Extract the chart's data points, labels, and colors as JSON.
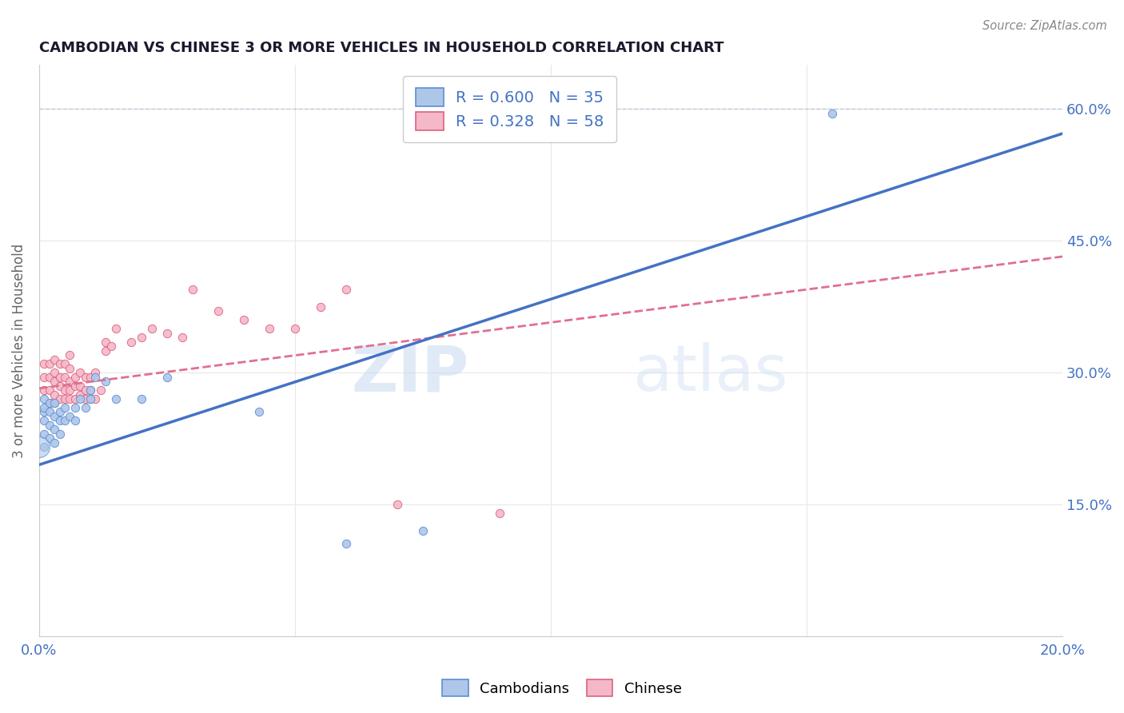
{
  "title": "CAMBODIAN VS CHINESE 3 OR MORE VEHICLES IN HOUSEHOLD CORRELATION CHART",
  "source_text": "Source: ZipAtlas.com",
  "ylabel": "3 or more Vehicles in Household",
  "xlim": [
    0.0,
    0.2
  ],
  "ylim": [
    0.0,
    0.65
  ],
  "x_ticks": [
    0.0,
    0.05,
    0.1,
    0.15,
    0.2
  ],
  "y_ticks": [
    0.0,
    0.15,
    0.3,
    0.45,
    0.6
  ],
  "cambodian_R": 0.6,
  "cambodian_N": 35,
  "chinese_R": 0.328,
  "chinese_N": 58,
  "cambodian_color": "#aec6e8",
  "chinese_color": "#f4b8c8",
  "cambodian_edge_color": "#5b8fd4",
  "chinese_edge_color": "#e06080",
  "cambodian_line_color": "#4472c4",
  "chinese_line_color": "#e07090",
  "watermark_zip": "ZIP",
  "watermark_atlas": "atlas",
  "cambodian_line_x0": 0.0,
  "cambodian_line_y0": 0.195,
  "cambodian_line_x1": 0.2,
  "cambodian_line_y1": 0.572,
  "chinese_line_x0": 0.0,
  "chinese_line_y0": 0.282,
  "chinese_line_x1": 0.2,
  "chinese_line_y1": 0.432,
  "cambodian_scatter_x": [
    0.001,
    0.001,
    0.001,
    0.001,
    0.001,
    0.001,
    0.002,
    0.002,
    0.002,
    0.002,
    0.003,
    0.003,
    0.003,
    0.003,
    0.004,
    0.004,
    0.004,
    0.005,
    0.005,
    0.006,
    0.007,
    0.007,
    0.008,
    0.009,
    0.01,
    0.01,
    0.011,
    0.013,
    0.015,
    0.02,
    0.025,
    0.043,
    0.06,
    0.075,
    0.155
  ],
  "cambodian_scatter_y": [
    0.215,
    0.23,
    0.245,
    0.255,
    0.26,
    0.27,
    0.225,
    0.24,
    0.255,
    0.265,
    0.22,
    0.235,
    0.25,
    0.265,
    0.23,
    0.245,
    0.255,
    0.245,
    0.26,
    0.25,
    0.245,
    0.26,
    0.27,
    0.26,
    0.27,
    0.28,
    0.295,
    0.29,
    0.27,
    0.27,
    0.295,
    0.255,
    0.105,
    0.12,
    0.595
  ],
  "chinese_scatter_x": [
    0.001,
    0.001,
    0.001,
    0.002,
    0.002,
    0.002,
    0.002,
    0.003,
    0.003,
    0.003,
    0.003,
    0.003,
    0.004,
    0.004,
    0.004,
    0.004,
    0.005,
    0.005,
    0.005,
    0.005,
    0.006,
    0.006,
    0.006,
    0.006,
    0.006,
    0.007,
    0.007,
    0.007,
    0.008,
    0.008,
    0.008,
    0.009,
    0.009,
    0.009,
    0.01,
    0.01,
    0.01,
    0.011,
    0.011,
    0.012,
    0.013,
    0.013,
    0.014,
    0.015,
    0.018,
    0.02,
    0.022,
    0.025,
    0.028,
    0.03,
    0.035,
    0.04,
    0.045,
    0.05,
    0.055,
    0.06,
    0.07,
    0.09
  ],
  "chinese_scatter_y": [
    0.28,
    0.295,
    0.31,
    0.265,
    0.28,
    0.295,
    0.31,
    0.265,
    0.275,
    0.29,
    0.3,
    0.315,
    0.27,
    0.285,
    0.295,
    0.31,
    0.27,
    0.28,
    0.295,
    0.31,
    0.27,
    0.28,
    0.29,
    0.305,
    0.32,
    0.27,
    0.285,
    0.295,
    0.275,
    0.285,
    0.3,
    0.27,
    0.28,
    0.295,
    0.27,
    0.28,
    0.295,
    0.27,
    0.3,
    0.28,
    0.325,
    0.335,
    0.33,
    0.35,
    0.335,
    0.34,
    0.35,
    0.345,
    0.34,
    0.395,
    0.37,
    0.36,
    0.35,
    0.35,
    0.375,
    0.395,
    0.15,
    0.14
  ],
  "title_color": "#1a1a2e",
  "source_color": "#888888",
  "tick_color": "#4472c4",
  "ylabel_color": "#666666",
  "grid_color": "#e8e8e8",
  "legend_label_color": "#333333",
  "legend_value_color": "#4472c4"
}
